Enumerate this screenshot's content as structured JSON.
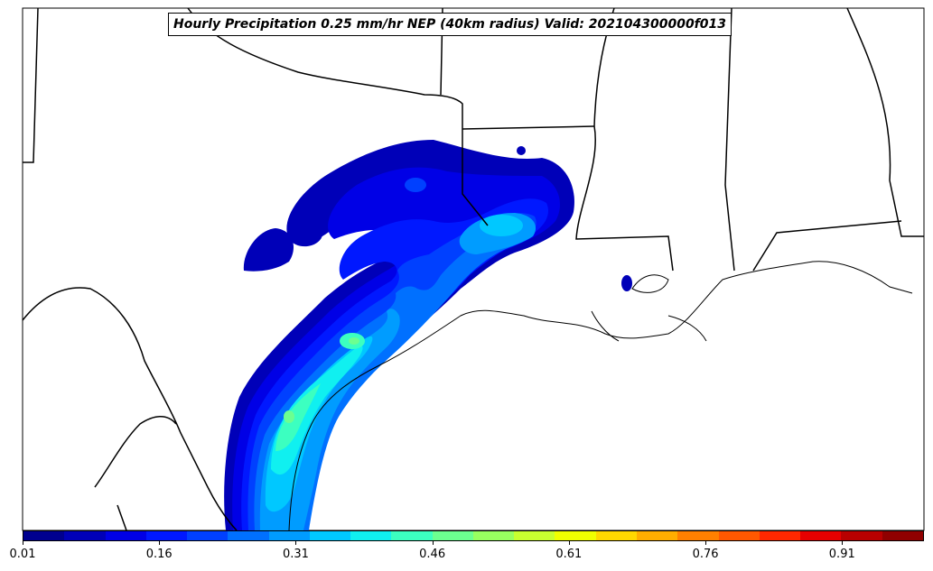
{
  "title": "Hourly Precipitation 0.25 mm/hr NEP (40km radius) Valid: 202104300000f013",
  "colorbar": {
    "colors": [
      "#00008f",
      "#0000b8",
      "#0000e6",
      "#0018ff",
      "#0040ff",
      "#0070ff",
      "#009cff",
      "#00c8ff",
      "#10f0f0",
      "#3cffc0",
      "#6cff90",
      "#98ff60",
      "#c8ff30",
      "#f0ff00",
      "#ffd800",
      "#ffae00",
      "#ff8000",
      "#ff5800",
      "#ff2800",
      "#e60000",
      "#b80000",
      "#900000"
    ],
    "tick_labels": [
      "0.01",
      "0.16",
      "0.31",
      "0.46",
      "0.61",
      "0.76",
      "0.91"
    ]
  },
  "chart_data": {
    "type": "heatmap",
    "title": "Hourly Precipitation 0.25 mm/hr NEP (40km radius) Valid: 202104300000f013",
    "colorbar_range": [
      0.01,
      1.0
    ],
    "colorbar_ticks": [
      0.01,
      0.16,
      0.31,
      0.46,
      0.61,
      0.76,
      0.91
    ]
  }
}
